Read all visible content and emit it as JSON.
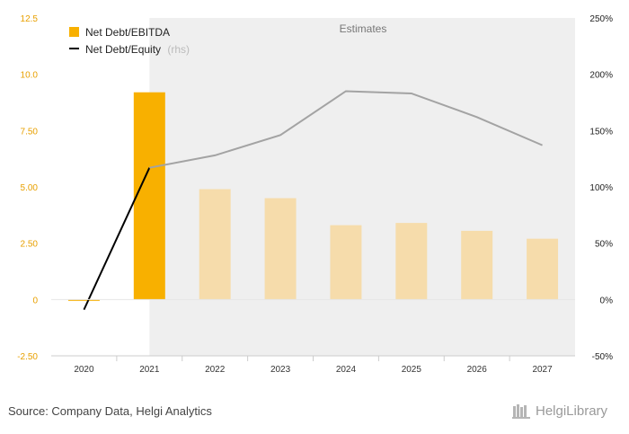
{
  "chart_data": {
    "type": "bar",
    "categories": [
      "2020",
      "2021",
      "2022",
      "2023",
      "2024",
      "2025",
      "2026",
      "2027"
    ],
    "series": [
      {
        "name": "Net Debt/EBITDA",
        "kind": "bar",
        "axis": "left",
        "values": [
          -0.05,
          9.2,
          4.9,
          4.5,
          3.3,
          3.4,
          3.05,
          2.7
        ]
      },
      {
        "name": "Net Debt/Equity",
        "kind": "line",
        "axis": "right",
        "values": [
          -9,
          117,
          128,
          146,
          185,
          183,
          162,
          137
        ]
      }
    ],
    "estimate_from": "2022",
    "estimates_label": "Estimates",
    "rhs_label": "(rhs)",
    "ylim_left": [
      -2.5,
      12.5
    ],
    "yticks_left": [
      "12.5",
      "10.0",
      "7.50",
      "5.00",
      "2.50",
      "0",
      "-2.50"
    ],
    "ylim_right": [
      -50,
      250
    ],
    "yticks_right": [
      "250%",
      "200%",
      "150%",
      "100%",
      "50%",
      "0%",
      "-50%"
    ],
    "legend_position": "top-left",
    "colors": {
      "bar_actual": "#f8b000",
      "bar_estimate": "#f6dcab",
      "line_actual": "#000000",
      "line_estimate": "#a3a3a3",
      "estimate_band": "#efefef"
    }
  },
  "footer": {
    "source": "Source: Company Data, Helgi Analytics",
    "brand": "HelgiLibrary"
  }
}
